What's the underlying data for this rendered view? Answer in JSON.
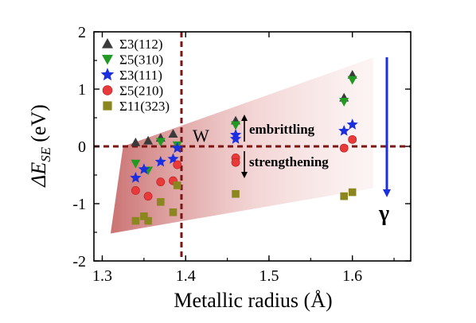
{
  "chart_data": {
    "type": "scatter",
    "xlabel": "Metallic radius (Å)",
    "ylabel_main": "ΔE",
    "ylabel_sub": "SE",
    "ylabel_unit": "(eV)",
    "xlim": [
      1.29,
      1.67
    ],
    "ylim": [
      -2,
      2
    ],
    "x_ticks": [
      1.3,
      1.4,
      1.5,
      1.6
    ],
    "x_tick_labels": [
      "1.3",
      "1.4",
      "1.5",
      "1.6"
    ],
    "y_ticks": [
      -2,
      -1,
      0,
      1,
      2
    ],
    "y_tick_labels": [
      "-2",
      "-1",
      "0",
      "1",
      "2"
    ],
    "ref_lines": {
      "x": 1.395,
      "y": 0,
      "color": "#7a1515"
    },
    "legend_position": "top-left",
    "series": [
      {
        "name": "Σ3(112)",
        "marker": "triangle-up",
        "color": "#3a3a3a",
        "points": [
          [
            1.34,
            0.07
          ],
          [
            1.355,
            0.1
          ],
          [
            1.37,
            0.15
          ],
          [
            1.385,
            0.22
          ],
          [
            1.46,
            0.45
          ],
          [
            1.59,
            0.85
          ],
          [
            1.6,
            1.25
          ]
        ]
      },
      {
        "name": "Σ5(310)",
        "marker": "triangle-down",
        "color": "#229922",
        "points": [
          [
            1.34,
            -0.3
          ],
          [
            1.355,
            -0.42
          ],
          [
            1.37,
            0.08
          ],
          [
            1.39,
            0.02
          ],
          [
            1.46,
            0.37
          ],
          [
            1.59,
            0.78
          ],
          [
            1.6,
            1.16
          ]
        ]
      },
      {
        "name": "Σ3(111)",
        "marker": "star",
        "color": "#1c2fe0",
        "points": [
          [
            1.34,
            -0.55
          ],
          [
            1.35,
            -0.4
          ],
          [
            1.37,
            -0.27
          ],
          [
            1.385,
            -0.22
          ],
          [
            1.39,
            -0.03
          ],
          [
            1.46,
            0.13
          ],
          [
            1.46,
            0.2
          ],
          [
            1.59,
            0.27
          ],
          [
            1.6,
            0.38
          ]
        ]
      },
      {
        "name": "Σ5(210)",
        "marker": "circle",
        "color": "#e83a3a",
        "points": [
          [
            1.34,
            -0.77
          ],
          [
            1.355,
            -0.87
          ],
          [
            1.37,
            -0.62
          ],
          [
            1.385,
            -0.6
          ],
          [
            1.39,
            -0.32
          ],
          [
            1.46,
            -0.2
          ],
          [
            1.46,
            -0.28
          ],
          [
            1.59,
            -0.03
          ],
          [
            1.6,
            0.12
          ]
        ]
      },
      {
        "name": "Σ11(323)",
        "marker": "square",
        "color": "#8b8620",
        "points": [
          [
            1.34,
            -1.3
          ],
          [
            1.35,
            -1.22
          ],
          [
            1.355,
            -1.3
          ],
          [
            1.37,
            -0.97
          ],
          [
            1.385,
            -1.15
          ],
          [
            1.39,
            -0.68
          ],
          [
            1.46,
            -0.83
          ],
          [
            1.59,
            -0.87
          ],
          [
            1.6,
            -0.8
          ]
        ]
      }
    ],
    "region_polygon": [
      [
        1.31,
        -1.52
      ],
      [
        1.625,
        -0.73
      ],
      [
        1.625,
        1.55
      ],
      [
        1.325,
        0.0
      ]
    ],
    "annotations": {
      "w_label": "W",
      "embrittling": "embrittling",
      "strengthening": "strengthening",
      "gamma": "γ"
    }
  }
}
